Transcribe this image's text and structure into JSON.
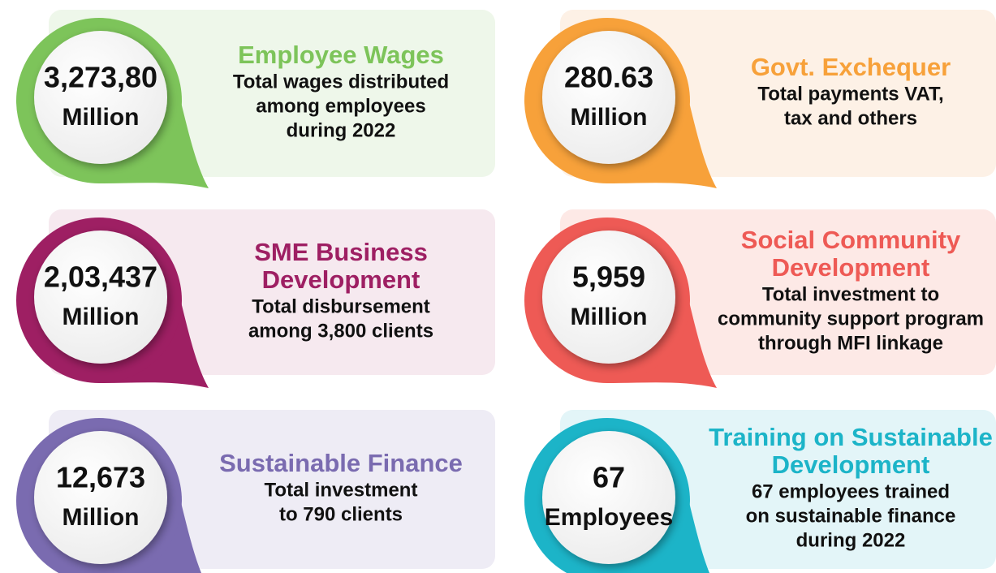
{
  "cards": [
    {
      "value": "3,273,80",
      "unit": "Million",
      "title": [
        "Employee Wages"
      ],
      "description": [
        "Total wages distributed",
        "among employees",
        "during 2022"
      ],
      "color": "#7dc45a",
      "panel": "#eef7ea"
    },
    {
      "value": "280.63",
      "unit": "Million",
      "title": [
        "Govt. Exchequer"
      ],
      "description": [
        "Total payments VAT,",
        "tax and others"
      ],
      "color": "#f7a13a",
      "panel": "#fdf1e6"
    },
    {
      "value": "2,03,437",
      "unit": "Million",
      "title": [
        "SME Business",
        "Development"
      ],
      "description": [
        "Total disbursement",
        "among 3,800 clients"
      ],
      "color": "#9e1f63",
      "panel": "#f6e9ef"
    },
    {
      "value": "5,959",
      "unit": "Million",
      "title": [
        "Social Community",
        "Development"
      ],
      "description": [
        "Total investment to",
        "community support program",
        "through MFI linkage"
      ],
      "color": "#ee5a55",
      "panel": "#fde9e6"
    },
    {
      "value": "12,673",
      "unit": "Million",
      "title": [
        "Sustainable Finance"
      ],
      "description": [
        "Total investment",
        "to 790 clients"
      ],
      "color": "#7a6bb0",
      "panel": "#eeecf5"
    },
    {
      "value": "67",
      "unit": "Employees",
      "title": [
        "Training on Sustainable",
        "Development"
      ],
      "description": [
        "67 employees trained",
        "on sustainable finance",
        "during 2022"
      ],
      "color": "#1cb4c8",
      "panel": "#e3f5f8"
    }
  ]
}
